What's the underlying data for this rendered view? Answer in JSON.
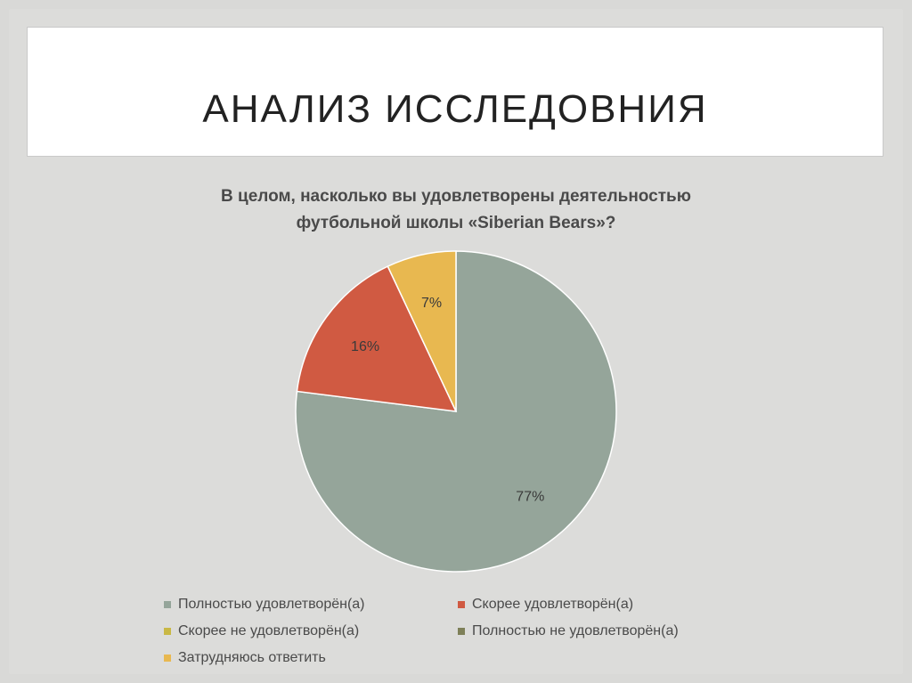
{
  "slide": {
    "title": "АНАЛИЗ ИССЛЕДОВНИЯ"
  },
  "chart_data": {
    "type": "pie",
    "title": "В целом, насколько вы удовлетворены деятельностью футбольной школы «Siberian Bears»?",
    "title_lines": [
      "В целом, насколько вы удовлетворены деятельностью",
      "футбольной школы «Siberian Bears»?"
    ],
    "categories": [
      "Полностью удовлетворён(а)",
      "Скорее удовлетворён(а)",
      "Скорее не удовлетворён(а)",
      "Полностью не удовлетворён(а)",
      "Затрудняюсь ответить"
    ],
    "values": [
      77,
      16,
      0,
      0,
      7
    ],
    "data_labels": [
      "77%",
      "16%",
      "",
      "",
      "7%"
    ],
    "colors": [
      "#95a59a",
      "#d05a42",
      "#c9b845",
      "#7e8058",
      "#e8b850"
    ],
    "legend_position": "bottom"
  }
}
